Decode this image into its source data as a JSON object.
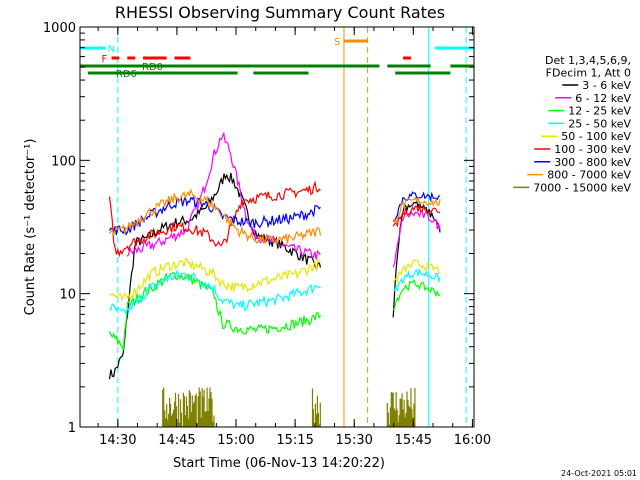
{
  "chart_data": {
    "type": "line",
    "title": "RHESSI Observing Summary Count Rates",
    "xlabel": "Start Time (06-Nov-13 14:20:22)",
    "ylabel": "Count Rate (s⁻¹ detector⁻¹)",
    "yscale": "log",
    "ylim": [
      1,
      1000
    ],
    "xlim_minutes": [
      0,
      100
    ],
    "xticks": [
      {
        "label": "14:30",
        "minute": 9.6
      },
      {
        "label": "14:45",
        "minute": 24.6
      },
      {
        "label": "15:00",
        "minute": 39.6
      },
      {
        "label": "15:15",
        "minute": 54.6
      },
      {
        "label": "15:30",
        "minute": 69.6
      },
      {
        "label": "15:45",
        "minute": 84.6
      },
      {
        "label": "16:00",
        "minute": 99.6
      }
    ],
    "yticks": [
      {
        "label": "1",
        "value": 1
      },
      {
        "label": "10",
        "value": 10
      },
      {
        "label": "100",
        "value": 100
      },
      {
        "label": "1000",
        "value": 1000
      }
    ],
    "legend_header": [
      "Det 1,3,4,5,6,9,",
      "FDecim 1, Att 0"
    ],
    "legend_position": "right",
    "series": [
      {
        "name": "3 - 6 keV",
        "color": "#000000",
        "points": [
          [
            7.5,
            2.5
          ],
          [
            8.5,
            2.5
          ],
          [
            11,
            3.5
          ],
          [
            12,
            7
          ],
          [
            14,
            24
          ],
          [
            17,
            26
          ],
          [
            20,
            30
          ],
          [
            24,
            34
          ],
          [
            28,
            36
          ],
          [
            32,
            44
          ],
          [
            35,
            60
          ],
          [
            37,
            80
          ],
          [
            39,
            70
          ],
          [
            41,
            52
          ],
          [
            43,
            36
          ],
          [
            45,
            27
          ],
          [
            50,
            24
          ],
          [
            55,
            20
          ],
          [
            59,
            17
          ],
          [
            60,
            16
          ],
          [
            61.3,
            16
          ]
        ]
      },
      {
        "name": "6 - 12 keV",
        "color": "#ff00ff",
        "points": [
          [
            12,
            20
          ],
          [
            20,
            24
          ],
          [
            27,
            30
          ],
          [
            31,
            55
          ],
          [
            34,
            110
          ],
          [
            36,
            155
          ],
          [
            38,
            120
          ],
          [
            40,
            70
          ],
          [
            42,
            40
          ],
          [
            44,
            28
          ],
          [
            48,
            25
          ],
          [
            53,
            22
          ],
          [
            58,
            20
          ],
          [
            61.3,
            19
          ]
        ]
      },
      {
        "name": "12 - 25 keV",
        "color": "#00ff00",
        "points": [
          [
            7.5,
            5
          ],
          [
            11,
            4
          ],
          [
            12,
            8
          ],
          [
            16,
            10
          ],
          [
            20,
            12
          ],
          [
            24,
            14
          ],
          [
            28,
            13
          ],
          [
            32,
            11
          ],
          [
            34,
            10
          ],
          [
            36,
            6
          ],
          [
            40,
            5.5
          ],
          [
            45,
            5.3
          ],
          [
            50,
            5.6
          ],
          [
            55,
            6
          ],
          [
            59,
            6.5
          ],
          [
            61.3,
            7
          ]
        ]
      },
      {
        "name": "25 - 50 keV",
        "color": "#00ffff",
        "points": [
          [
            7.5,
            8
          ],
          [
            11,
            7
          ],
          [
            14,
            8.5
          ],
          [
            18,
            11
          ],
          [
            22,
            13
          ],
          [
            26,
            14
          ],
          [
            30,
            13
          ],
          [
            34,
            11
          ],
          [
            36,
            9
          ],
          [
            40,
            8
          ],
          [
            45,
            8.5
          ],
          [
            50,
            9
          ],
          [
            55,
            10
          ],
          [
            59,
            11
          ],
          [
            61.3,
            12
          ]
        ]
      },
      {
        "name": "50 - 100 keV",
        "color": "#e6e600",
        "points": [
          [
            7.5,
            10
          ],
          [
            11,
            9
          ],
          [
            14,
            10.5
          ],
          [
            18,
            14
          ],
          [
            22,
            16
          ],
          [
            26,
            17
          ],
          [
            30,
            16
          ],
          [
            34,
            14
          ],
          [
            36,
            12
          ],
          [
            40,
            11
          ],
          [
            45,
            12
          ],
          [
            50,
            13
          ],
          [
            55,
            14
          ],
          [
            59,
            16
          ],
          [
            61.3,
            17
          ]
        ]
      },
      {
        "name": "100 - 300 keV",
        "color": "#ff0000",
        "points": [
          [
            7.5,
            50
          ],
          [
            9,
            20
          ],
          [
            12,
            23
          ],
          [
            16,
            26
          ],
          [
            20,
            29
          ],
          [
            24,
            32
          ],
          [
            28,
            31
          ],
          [
            32,
            28
          ],
          [
            34,
            25
          ],
          [
            36,
            22
          ],
          [
            38,
            30
          ],
          [
            41,
            50
          ],
          [
            46,
            53
          ],
          [
            52,
            56
          ],
          [
            58,
            60
          ],
          [
            61.3,
            65
          ]
        ]
      },
      {
        "name": "300 - 800 keV",
        "color": "#0000ff",
        "points": [
          [
            7.5,
            30
          ],
          [
            12,
            30
          ],
          [
            16,
            36
          ],
          [
            20,
            42
          ],
          [
            24,
            48
          ],
          [
            28,
            50
          ],
          [
            32,
            47
          ],
          [
            34,
            43
          ],
          [
            36,
            38
          ],
          [
            40,
            35
          ],
          [
            44,
            34
          ],
          [
            48,
            35
          ],
          [
            54,
            37
          ],
          [
            58,
            40
          ],
          [
            61.3,
            44
          ]
        ]
      },
      {
        "name": "800 - 7000 keV",
        "color": "#ff8c00",
        "points": [
          [
            7.5,
            28
          ],
          [
            12,
            31
          ],
          [
            16,
            38
          ],
          [
            20,
            45
          ],
          [
            24,
            52
          ],
          [
            28,
            55
          ],
          [
            32,
            50
          ],
          [
            34,
            45
          ],
          [
            36,
            40
          ],
          [
            40,
            30
          ],
          [
            44,
            26
          ],
          [
            48,
            25
          ],
          [
            54,
            26
          ],
          [
            58,
            28
          ],
          [
            61.3,
            30
          ]
        ]
      },
      {
        "name": "7000 - 15000 keV",
        "color": "#808000",
        "points": [
          [
            14,
            1
          ],
          [
            61.3,
            1
          ]
        ]
      }
    ],
    "segments": [
      {
        "series": "3 - 6 keV",
        "points": [
          [
            79.5,
            7
          ],
          [
            80.5,
            20
          ],
          [
            82,
            44
          ],
          [
            85,
            48
          ],
          [
            88,
            42
          ],
          [
            90,
            37
          ],
          [
            91.5,
            30
          ]
        ]
      },
      {
        "series": "6 - 12 keV",
        "points": [
          [
            79.5,
            15
          ],
          [
            82,
            38
          ],
          [
            85,
            40
          ],
          [
            88,
            38
          ],
          [
            90,
            35
          ],
          [
            91.5,
            30
          ]
        ]
      },
      {
        "series": "12 - 25 keV",
        "points": [
          [
            79.5,
            8
          ],
          [
            82,
            11
          ],
          [
            85,
            12
          ],
          [
            88,
            11
          ],
          [
            91.5,
            10
          ]
        ]
      },
      {
        "series": "25 - 50 keV",
        "points": [
          [
            79.5,
            10
          ],
          [
            82,
            13
          ],
          [
            85,
            14.5
          ],
          [
            88,
            14
          ],
          [
            91.5,
            13
          ]
        ]
      },
      {
        "series": "50 - 100 keV",
        "points": [
          [
            79.5,
            12
          ],
          [
            82,
            15
          ],
          [
            85,
            17
          ],
          [
            88,
            16
          ],
          [
            91.5,
            15
          ]
        ]
      },
      {
        "series": "100 - 300 keV",
        "points": [
          [
            79.5,
            30
          ],
          [
            82,
            40
          ],
          [
            85,
            44
          ],
          [
            88,
            43
          ],
          [
            91.5,
            42
          ]
        ]
      },
      {
        "series": "300 - 800 keV",
        "points": [
          [
            79.5,
            35
          ],
          [
            82,
            52
          ],
          [
            85,
            55
          ],
          [
            88,
            54
          ],
          [
            91.5,
            53
          ]
        ]
      },
      {
        "series": "800 - 7000 keV",
        "points": [
          [
            79.5,
            33
          ],
          [
            82,
            47
          ],
          [
            85,
            50
          ],
          [
            88,
            49
          ],
          [
            91.5,
            48
          ]
        ]
      }
    ],
    "flags": [
      {
        "label": "N",
        "color": "#00ffff",
        "bars": [
          [
            0,
            6.5
          ],
          [
            90,
            100
          ]
        ]
      },
      {
        "label": "F",
        "color": "#ff0000",
        "bars": [
          [
            8,
            10
          ],
          [
            12,
            14
          ],
          [
            16,
            22
          ],
          [
            24,
            28
          ],
          [
            82,
            84
          ]
        ]
      },
      {
        "label": "S",
        "color": "#ff8c00",
        "bars": [
          [
            67,
            73
          ]
        ]
      },
      {
        "label": "RD0",
        "color": "#008000",
        "bars": [
          [
            0,
            44
          ],
          [
            44,
            76
          ],
          [
            78,
            89
          ],
          [
            94,
            100
          ]
        ]
      },
      {
        "label": "RD6",
        "color": "#008000",
        "bars": [
          [
            2,
            40
          ],
          [
            44,
            58
          ],
          [
            80,
            94
          ]
        ]
      }
    ],
    "vertical_lines": [
      {
        "minute": 0,
        "color": "#00ffff",
        "style": "solid"
      },
      {
        "minute": 9.6,
        "color": "#00ffff",
        "style": "dashed"
      },
      {
        "minute": 67,
        "color": "#ff8c00",
        "style": "solid"
      },
      {
        "minute": 73,
        "color": "#ff8c00",
        "style": "dashed"
      },
      {
        "minute": 88.5,
        "color": "#00ffff",
        "style": "solid"
      },
      {
        "minute": 98,
        "color": "#00ffff",
        "style": "dashed"
      }
    ],
    "footer": "24-Oct-2021 05:01"
  }
}
